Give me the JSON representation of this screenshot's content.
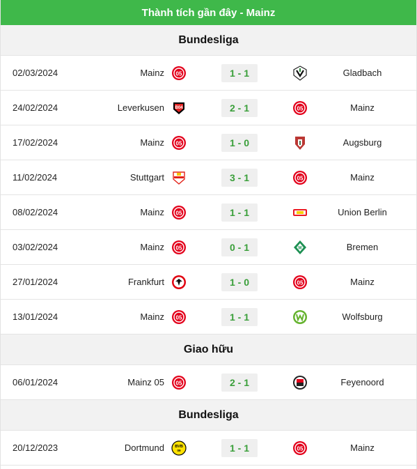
{
  "title": "Thành tích gần đây - Mainz",
  "groups": [
    {
      "league": "Bundesliga",
      "matches": [
        {
          "date": "02/03/2024",
          "home": "Mainz",
          "home_logo": "mainz-logo",
          "score": "1 - 1",
          "away": "Gladbach",
          "away_logo": "gladbach-logo"
        },
        {
          "date": "24/02/2024",
          "home": "Leverkusen",
          "home_logo": "leverkusen-logo",
          "score": "2 - 1",
          "away": "Mainz",
          "away_logo": "mainz-logo"
        },
        {
          "date": "17/02/2024",
          "home": "Mainz",
          "home_logo": "mainz-logo",
          "score": "1 - 0",
          "away": "Augsburg",
          "away_logo": "augsburg-logo"
        },
        {
          "date": "11/02/2024",
          "home": "Stuttgart",
          "home_logo": "stuttgart-logo",
          "score": "3 - 1",
          "away": "Mainz",
          "away_logo": "mainz-logo"
        },
        {
          "date": "08/02/2024",
          "home": "Mainz",
          "home_logo": "mainz-logo",
          "score": "1 - 1",
          "away": "Union Berlin",
          "away_logo": "union-berlin-logo"
        },
        {
          "date": "03/02/2024",
          "home": "Mainz",
          "home_logo": "mainz-logo",
          "score": "0 - 1",
          "away": "Bremen",
          "away_logo": "bremen-logo"
        },
        {
          "date": "27/01/2024",
          "home": "Frankfurt",
          "home_logo": "frankfurt-logo",
          "score": "1 - 0",
          "away": "Mainz",
          "away_logo": "mainz-logo"
        },
        {
          "date": "13/01/2024",
          "home": "Mainz",
          "home_logo": "mainz-logo",
          "score": "1 - 1",
          "away": "Wolfsburg",
          "away_logo": "wolfsburg-logo"
        }
      ]
    },
    {
      "league": "Giao hữu",
      "matches": [
        {
          "date": "06/01/2024",
          "home": "Mainz 05",
          "home_logo": "mainz-logo",
          "score": "2 - 1",
          "away": "Feyenoord",
          "away_logo": "feyenoord-logo"
        }
      ]
    },
    {
      "league": "Bundesliga",
      "matches": [
        {
          "date": "20/12/2023",
          "home": "Dortmund",
          "home_logo": "dortmund-logo",
          "score": "1 - 1",
          "away": "Mainz",
          "away_logo": "mainz-logo"
        }
      ]
    }
  ],
  "colors": {
    "header_bg": "#3fb84a",
    "score_text": "#3a9f3a",
    "league_bg": "#f2f2f2"
  }
}
